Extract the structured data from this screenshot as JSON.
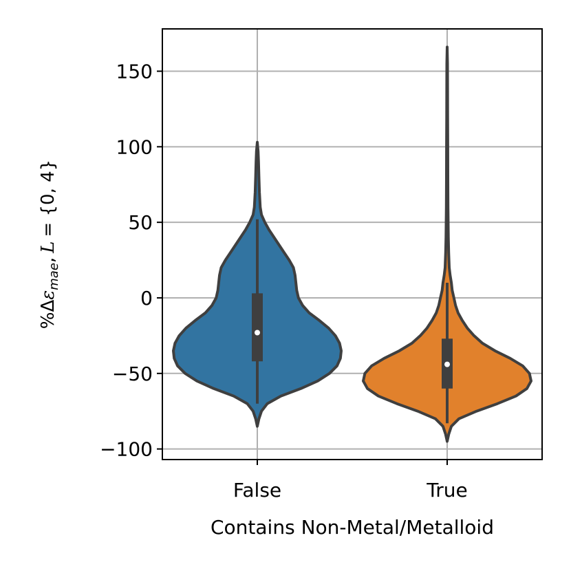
{
  "chart_data": {
    "type": "violin",
    "title": "",
    "xlabel": "Contains Non-Metal/Metalloid",
    "ylabel": {
      "prefix": "%Δ",
      "symbol": "ε",
      "subscript": "mae",
      "suffix_sep": ",",
      "variable": "L",
      "equals_set": "= {0, 4}"
    },
    "categories": [
      "False",
      "True"
    ],
    "ylim": [
      -107,
      178
    ],
    "yticks": [
      -100,
      -50,
      0,
      50,
      100,
      150
    ],
    "ytick_labels": [
      "−100",
      "−50",
      "0",
      "50",
      "100",
      "150"
    ],
    "grid": true,
    "colors": {
      "False": "#3274a1",
      "True": "#e1812c",
      "outline": "#3f3f3f",
      "grid": "#b0b0b0"
    },
    "violins": [
      {
        "category": "False",
        "min": -85,
        "max": 103,
        "whisker_low": -70,
        "whisker_high": 52,
        "q1": -42,
        "q3": 3,
        "median": -23,
        "density": [
          [
            -85,
            0.0
          ],
          [
            -80,
            0.02
          ],
          [
            -75,
            0.05
          ],
          [
            -70,
            0.12
          ],
          [
            -65,
            0.28
          ],
          [
            -60,
            0.52
          ],
          [
            -55,
            0.72
          ],
          [
            -50,
            0.86
          ],
          [
            -45,
            0.95
          ],
          [
            -40,
            0.99
          ],
          [
            -35,
            1.0
          ],
          [
            -30,
            0.98
          ],
          [
            -25,
            0.93
          ],
          [
            -20,
            0.85
          ],
          [
            -15,
            0.74
          ],
          [
            -10,
            0.62
          ],
          [
            -5,
            0.54
          ],
          [
            0,
            0.49
          ],
          [
            5,
            0.47
          ],
          [
            10,
            0.46
          ],
          [
            15,
            0.45
          ],
          [
            20,
            0.43
          ],
          [
            25,
            0.38
          ],
          [
            30,
            0.32
          ],
          [
            35,
            0.26
          ],
          [
            40,
            0.2
          ],
          [
            45,
            0.14
          ],
          [
            50,
            0.09
          ],
          [
            55,
            0.05
          ],
          [
            60,
            0.035
          ],
          [
            70,
            0.025
          ],
          [
            80,
            0.02
          ],
          [
            90,
            0.015
          ],
          [
            97,
            0.01
          ],
          [
            103,
            0.0
          ]
        ]
      },
      {
        "category": "True",
        "min": -95,
        "max": 166,
        "whisker_low": -83,
        "whisker_high": 10,
        "q1": -60,
        "q3": -27,
        "median": -44,
        "density": [
          [
            -95,
            0.0
          ],
          [
            -90,
            0.02
          ],
          [
            -85,
            0.05
          ],
          [
            -80,
            0.14
          ],
          [
            -75,
            0.35
          ],
          [
            -70,
            0.6
          ],
          [
            -65,
            0.82
          ],
          [
            -60,
            0.95
          ],
          [
            -55,
            1.0
          ],
          [
            -50,
            0.98
          ],
          [
            -45,
            0.9
          ],
          [
            -40,
            0.75
          ],
          [
            -35,
            0.57
          ],
          [
            -30,
            0.42
          ],
          [
            -25,
            0.32
          ],
          [
            -20,
            0.24
          ],
          [
            -15,
            0.18
          ],
          [
            -10,
            0.13
          ],
          [
            -5,
            0.1
          ],
          [
            0,
            0.08
          ],
          [
            5,
            0.06
          ],
          [
            10,
            0.05
          ],
          [
            15,
            0.035
          ],
          [
            20,
            0.025
          ],
          [
            30,
            0.018
          ],
          [
            40,
            0.014
          ],
          [
            60,
            0.01
          ],
          [
            80,
            0.008
          ],
          [
            100,
            0.007
          ],
          [
            120,
            0.006
          ],
          [
            140,
            0.005
          ],
          [
            155,
            0.004
          ],
          [
            166,
            0.0
          ]
        ]
      }
    ]
  }
}
